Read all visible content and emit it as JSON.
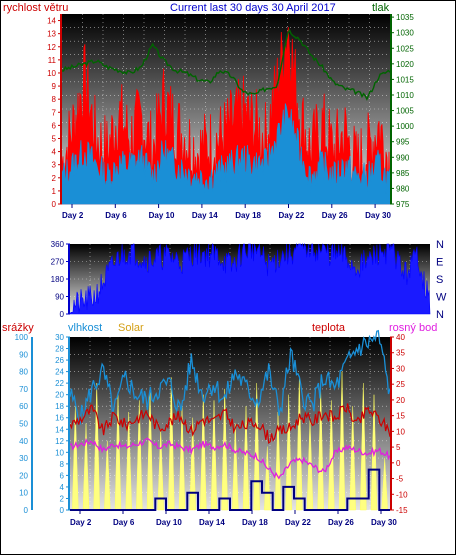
{
  "chart_data": [
    {
      "type": "line",
      "title": "Current last 30 days 30 April 2017",
      "left_axis_label": "rychlost větru",
      "right_axis_label": "tlak",
      "left_ticks": [
        "0",
        "1",
        "2",
        "3",
        "4",
        "5",
        "6",
        "7",
        "8",
        "9",
        "10",
        "11",
        "12",
        "13",
        "14"
      ],
      "right_ticks": [
        "975",
        "980",
        "985",
        "990",
        "995",
        "1000",
        "1005",
        "1010",
        "1015",
        "1020",
        "1025",
        "1030",
        "1035"
      ],
      "x_ticks": [
        "Day 2",
        "Day 6",
        "Day 10",
        "Day 14",
        "Day 18",
        "Day 22",
        "Day 26",
        "Day 30"
      ],
      "ylim_left": [
        0,
        14.5
      ],
      "ylim_right": [
        975,
        1036
      ],
      "series": [
        {
          "color": "#ff0000",
          "values": [
            3,
            6,
            9.5,
            5,
            4,
            7,
            5,
            6.5,
            4,
            8,
            6,
            5,
            4,
            4.5,
            5,
            6,
            7,
            6,
            5,
            9,
            13.5,
            7,
            4,
            6,
            4,
            5.5,
            3,
            4,
            6,
            3
          ]
        },
        {
          "color": "#1a8fd6",
          "values": [
            2,
            3,
            4,
            3,
            2,
            3,
            3,
            3.5,
            2,
            4,
            3,
            2.5,
            2,
            2,
            2.5,
            3,
            3.5,
            3,
            3,
            5,
            7,
            4,
            2,
            3,
            2,
            3,
            2,
            2,
            3,
            1.5
          ]
        },
        {
          "color": "#006400",
          "values": [
            1018,
            1019,
            1020,
            1021,
            1019,
            1018,
            1017,
            1019,
            1026,
            1021,
            1018,
            1017,
            1015,
            1014,
            1018,
            1016,
            1011,
            1010,
            1012,
            1013,
            1031,
            1028,
            1023,
            1019,
            1014,
            1012,
            1011,
            1009,
            1016,
            1018
          ]
        }
      ]
    },
    {
      "type": "area",
      "ylim": [
        0,
        360
      ],
      "left_ticks": [
        "0",
        "90",
        "180",
        "270",
        "360"
      ],
      "right_labels": [
        "N",
        "W",
        "S",
        "E",
        "N"
      ],
      "values": [
        40,
        60,
        90,
        200,
        300,
        330,
        280,
        290,
        300,
        270,
        320,
        310,
        300,
        240,
        330,
        340,
        250,
        300,
        320,
        350,
        330,
        310,
        300,
        240,
        270,
        320,
        330,
        200,
        310,
        40
      ]
    },
    {
      "type": "line",
      "labels": {
        "rain": "srážky",
        "humidity": "vlhkost",
        "solar": "Solar",
        "temperature": "teplota",
        "dewpoint": "rosný bod"
      },
      "left_ticks_rain": [
        "0",
        "10",
        "20",
        "30",
        "40",
        "50",
        "60",
        "70",
        "80",
        "90",
        "100"
      ],
      "left_ticks_humidity": [
        "0",
        "2",
        "4",
        "6",
        "8",
        "10",
        "12",
        "14",
        "16",
        "18",
        "20",
        "22",
        "24",
        "26",
        "28",
        "30"
      ],
      "right_ticks_temp": [
        "-15",
        "-10",
        "-5",
        "0",
        "5",
        "10",
        "15",
        "20",
        "25",
        "30",
        "35",
        "40"
      ],
      "x_ticks": [
        "Day 2",
        "Day 6",
        "Day 10",
        "Day 14",
        "Day 18",
        "Day 22",
        "Day 26",
        "Day 30"
      ],
      "ylim_humidity": [
        0,
        30
      ],
      "ylim_temp": [
        -15,
        40
      ],
      "series": [
        {
          "name": "vlhkost",
          "color": "#1a8fd6",
          "values": [
            20,
            16,
            21,
            24,
            17,
            23,
            20,
            19,
            21,
            22,
            17,
            26,
            20,
            22,
            19,
            24,
            21,
            19,
            24,
            17,
            27,
            20,
            18,
            23,
            21,
            25,
            28,
            29,
            30,
            20
          ]
        },
        {
          "name": "teplota",
          "color": "#cc0000",
          "values": [
            12,
            14,
            17,
            10,
            15,
            12,
            14,
            16,
            11,
            13,
            15,
            10,
            14,
            13,
            16,
            11,
            12,
            13,
            8,
            10,
            11,
            15,
            13,
            16,
            14,
            18,
            12,
            17,
            14,
            10
          ]
        },
        {
          "name": "rosný bod",
          "color": "#e020e0",
          "values": [
            5,
            6,
            7,
            4,
            6,
            5,
            6,
            7,
            5,
            6,
            5,
            4,
            6,
            5,
            6,
            4,
            3,
            2,
            -2,
            -5,
            0,
            1,
            -1,
            -3,
            3,
            5,
            4,
            3,
            4,
            2
          ]
        },
        {
          "name": "Solar",
          "color": "#ffff80",
          "values": [
            18,
            15,
            22,
            12,
            20,
            17,
            19,
            21,
            14,
            23,
            18,
            16,
            20,
            19,
            21,
            15,
            18,
            22,
            11,
            17,
            20,
            23,
            16,
            21,
            19,
            24,
            18,
            22,
            20,
            9
          ]
        },
        {
          "name": "srážky",
          "color": "#000080",
          "values": [
            0,
            0,
            0,
            0,
            0,
            0,
            0,
            0,
            2,
            0,
            0,
            3,
            0,
            0,
            2,
            0,
            0,
            5,
            3,
            0,
            4,
            2,
            0,
            0,
            0,
            0,
            2,
            2,
            7,
            0
          ]
        }
      ]
    }
  ]
}
